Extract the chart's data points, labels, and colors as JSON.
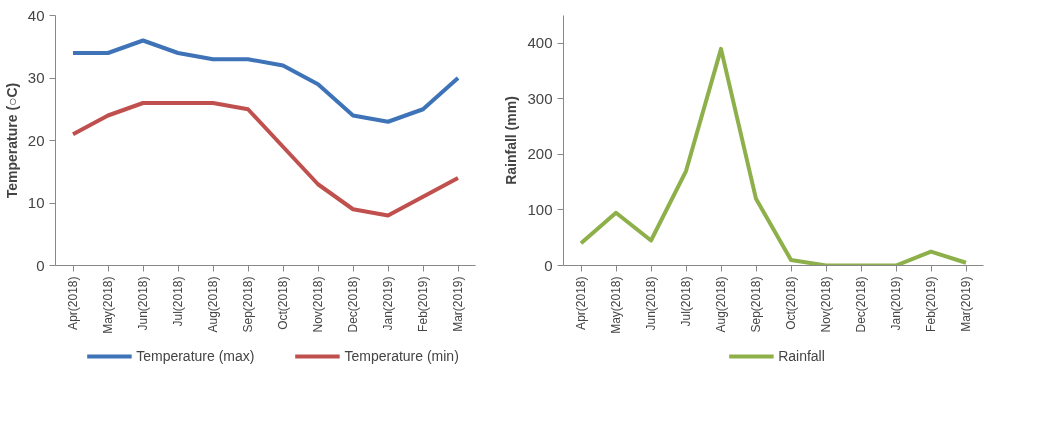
{
  "chart_data": [
    {
      "type": "line",
      "ylabel": "Temperature (○C)",
      "categories": [
        "Apr(2018)",
        "May(2018)",
        "Jun(2018)",
        "Jul(2018)",
        "Aug(2018)",
        "Sep(2018)",
        "Oct(2018)",
        "Nov(2018)",
        "Dec(2018)",
        "Jan(2019)",
        "Feb(2019)",
        "Mar(2019)"
      ],
      "series": [
        {
          "name": "Temperature (max)",
          "color": "#3f73b8",
          "values": [
            34,
            34,
            36,
            34,
            33,
            33,
            32,
            29,
            24,
            23,
            25,
            30
          ]
        },
        {
          "name": "Temperature (min)",
          "color": "#c0504d",
          "values": [
            21,
            24,
            26,
            26,
            26,
            25,
            19,
            13,
            9,
            8,
            11,
            14
          ]
        }
      ],
      "ylim": [
        0,
        40
      ],
      "yticks": [
        0,
        10,
        20,
        30,
        40
      ],
      "grid": false,
      "legend": "bottom",
      "marker": "none",
      "line_style": "solid"
    },
    {
      "type": "line",
      "ylabel": "Rainfall (mm)",
      "categories": [
        "Apr(2018)",
        "May(2018)",
        "Jun(2018)",
        "Jul(2018)",
        "Aug(2018)",
        "Sep(2018)",
        "Oct(2018)",
        "Nov(2018)",
        "Dec(2018)",
        "Jan(2019)",
        "Feb(2019)",
        "Mar(2019)"
      ],
      "series": [
        {
          "name": "Rainfall",
          "color": "#8db04a",
          "values": [
            40,
            95,
            45,
            170,
            390,
            120,
            10,
            0,
            0,
            0,
            25,
            5
          ]
        }
      ],
      "ylim": [
        0,
        450
      ],
      "yticks": [
        0,
        100,
        200,
        300,
        400
      ],
      "grid": false,
      "legend": "bottom",
      "marker": "none",
      "line_style": "solid"
    }
  ]
}
